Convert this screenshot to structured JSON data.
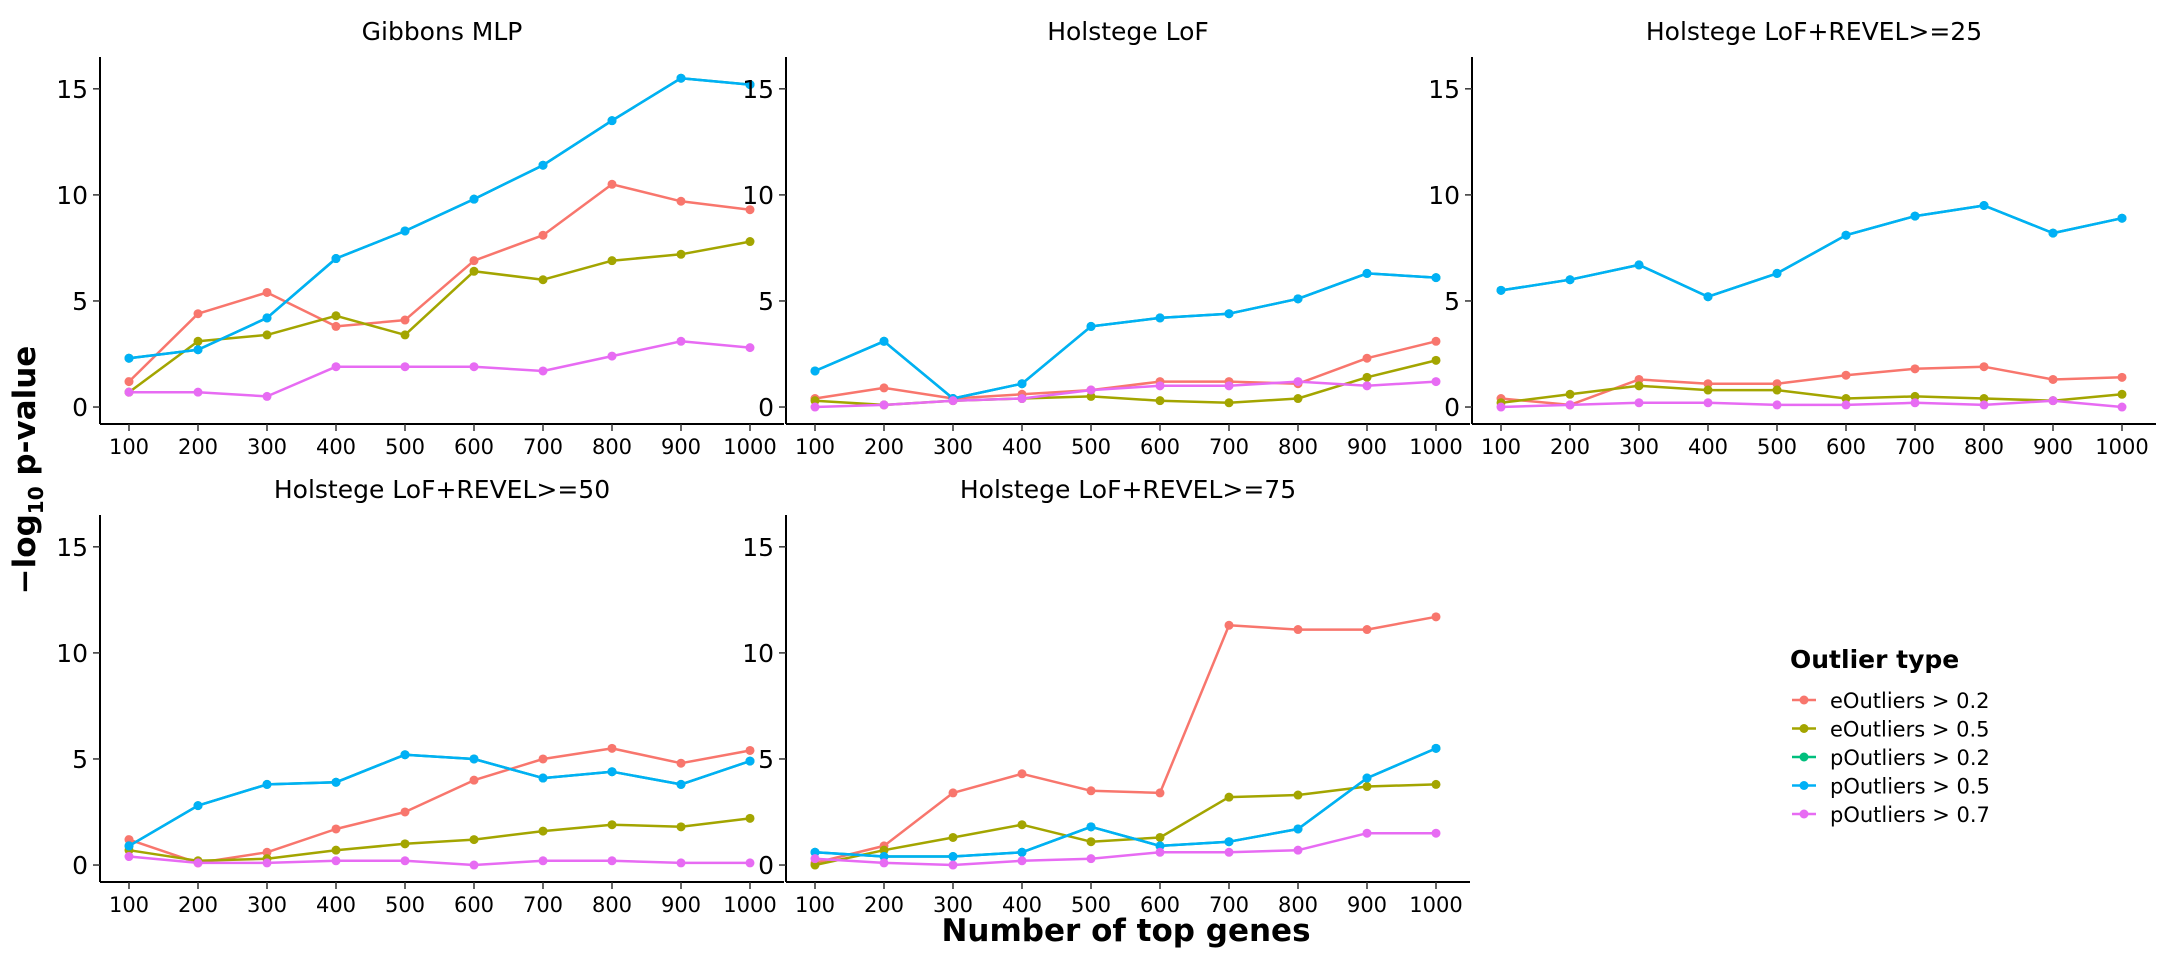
{
  "chart_data": {
    "type": "line",
    "xlabel": "Number of top genes",
    "ylabel_main": "−log",
    "ylabel_sub": "10",
    "ylabel_tail": " p-value",
    "ylim": [
      -0.8,
      16.5
    ],
    "y_ticks": [
      0,
      5,
      10,
      15
    ],
    "x": [
      100,
      200,
      300,
      400,
      500,
      600,
      700,
      800,
      900,
      1000
    ],
    "legend": {
      "title": "Outlier type",
      "placement": "right",
      "entries": [
        {
          "name": "eOutliers > 0.2",
          "color": "#F8766D"
        },
        {
          "name": "eOutliers > 0.5",
          "color": "#A3A500"
        },
        {
          "name": "pOutliers > 0.2",
          "color": "#00BF7D"
        },
        {
          "name": "pOutliers > 0.5",
          "color": "#00B0F6"
        },
        {
          "name": "pOutliers > 0.7",
          "color": "#E76BF3"
        }
      ]
    },
    "panels": [
      {
        "title": "Gibbons MLP",
        "series": [
          {
            "name": "eOutliers > 0.2",
            "values": [
              1.2,
              4.4,
              5.4,
              3.8,
              4.1,
              6.9,
              8.1,
              10.5,
              9.7,
              9.3
            ]
          },
          {
            "name": "eOutliers > 0.5",
            "values": [
              0.7,
              3.1,
              3.4,
              4.3,
              3.4,
              6.4,
              6.0,
              6.9,
              7.2,
              7.8
            ]
          },
          {
            "name": "pOutliers > 0.2",
            "values": [
              2.3,
              2.7,
              4.2,
              7.0,
              8.3,
              9.8,
              11.4,
              13.5,
              15.5,
              15.2
            ]
          },
          {
            "name": "pOutliers > 0.5",
            "values": [
              2.3,
              2.7,
              4.2,
              7.0,
              8.3,
              9.8,
              11.4,
              13.5,
              15.5,
              15.2
            ]
          },
          {
            "name": "pOutliers > 0.7",
            "values": [
              0.7,
              0.7,
              0.5,
              1.9,
              1.9,
              1.9,
              1.7,
              2.4,
              3.1,
              2.8
            ]
          }
        ]
      },
      {
        "title": "Holstege LoF",
        "series": [
          {
            "name": "eOutliers > 0.2",
            "values": [
              0.4,
              0.9,
              0.4,
              0.6,
              0.8,
              1.2,
              1.2,
              1.1,
              2.3,
              3.1
            ]
          },
          {
            "name": "eOutliers > 0.5",
            "values": [
              0.3,
              0.1,
              0.3,
              0.4,
              0.5,
              0.3,
              0.2,
              0.4,
              1.4,
              2.2
            ]
          },
          {
            "name": "pOutliers > 0.2",
            "values": [
              1.7,
              3.1,
              0.4,
              1.1,
              3.8,
              4.2,
              4.4,
              5.1,
              6.3,
              6.1
            ]
          },
          {
            "name": "pOutliers > 0.5",
            "values": [
              1.7,
              3.1,
              0.4,
              1.1,
              3.8,
              4.2,
              4.4,
              5.1,
              6.3,
              6.1
            ]
          },
          {
            "name": "pOutliers > 0.7",
            "values": [
              0.0,
              0.1,
              0.3,
              0.4,
              0.8,
              1.0,
              1.0,
              1.2,
              1.0,
              1.2
            ]
          }
        ]
      },
      {
        "title": "Holstege LoF+REVEL>=25",
        "series": [
          {
            "name": "eOutliers > 0.2",
            "values": [
              0.4,
              0.1,
              1.3,
              1.1,
              1.1,
              1.5,
              1.8,
              1.9,
              1.3,
              1.4
            ]
          },
          {
            "name": "eOutliers > 0.5",
            "values": [
              0.2,
              0.6,
              1.0,
              0.8,
              0.8,
              0.4,
              0.5,
              0.4,
              0.3,
              0.6
            ]
          },
          {
            "name": "pOutliers > 0.2",
            "values": [
              5.5,
              6.0,
              6.7,
              5.2,
              6.3,
              8.1,
              9.0,
              9.5,
              8.2,
              8.9
            ]
          },
          {
            "name": "pOutliers > 0.5",
            "values": [
              5.5,
              6.0,
              6.7,
              5.2,
              6.3,
              8.1,
              9.0,
              9.5,
              8.2,
              8.9
            ]
          },
          {
            "name": "pOutliers > 0.7",
            "values": [
              0.0,
              0.1,
              0.2,
              0.2,
              0.1,
              0.1,
              0.2,
              0.1,
              0.3,
              0.0
            ]
          }
        ]
      },
      {
        "title": "Holstege LoF+REVEL>=50",
        "series": [
          {
            "name": "eOutliers > 0.2",
            "values": [
              1.2,
              0.1,
              0.6,
              1.7,
              2.5,
              4.0,
              5.0,
              5.5,
              4.8,
              5.4
            ]
          },
          {
            "name": "eOutliers > 0.5",
            "values": [
              0.7,
              0.2,
              0.3,
              0.7,
              1.0,
              1.2,
              1.6,
              1.9,
              1.8,
              2.2
            ]
          },
          {
            "name": "pOutliers > 0.2",
            "values": [
              0.9,
              2.8,
              3.8,
              3.9,
              5.2,
              5.0,
              4.1,
              4.4,
              3.8,
              4.9
            ]
          },
          {
            "name": "pOutliers > 0.5",
            "values": [
              0.9,
              2.8,
              3.8,
              3.9,
              5.2,
              5.0,
              4.1,
              4.4,
              3.8,
              4.9
            ]
          },
          {
            "name": "pOutliers > 0.7",
            "values": [
              0.4,
              0.1,
              0.1,
              0.2,
              0.2,
              0.0,
              0.2,
              0.2,
              0.1,
              0.1
            ]
          }
        ]
      },
      {
        "title": "Holstege LoF+REVEL>=75",
        "series": [
          {
            "name": "eOutliers > 0.2",
            "values": [
              0.1,
              0.9,
              3.4,
              4.3,
              3.5,
              3.4,
              11.3,
              11.1,
              11.1,
              11.7
            ]
          },
          {
            "name": "eOutliers > 0.5",
            "values": [
              0.0,
              0.7,
              1.3,
              1.9,
              1.1,
              1.3,
              3.2,
              3.3,
              3.7,
              3.8
            ]
          },
          {
            "name": "pOutliers > 0.2",
            "values": [
              0.6,
              0.4,
              0.4,
              0.6,
              1.8,
              0.9,
              1.1,
              1.7,
              4.1,
              5.5
            ]
          },
          {
            "name": "pOutliers > 0.5",
            "values": [
              0.6,
              0.4,
              0.4,
              0.6,
              1.8,
              0.9,
              1.1,
              1.7,
              4.1,
              5.5
            ]
          },
          {
            "name": "pOutliers > 0.7",
            "values": [
              0.3,
              0.1,
              0.0,
              0.2,
              0.3,
              0.6,
              0.6,
              0.7,
              1.5,
              1.5
            ]
          }
        ]
      }
    ]
  }
}
